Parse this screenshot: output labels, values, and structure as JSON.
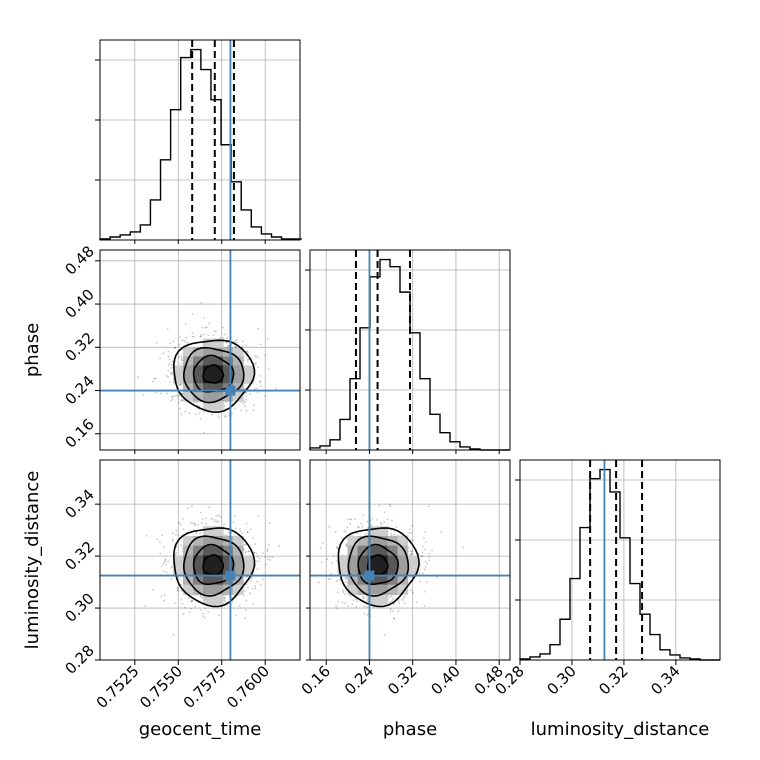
{
  "chart_data": {
    "type": "corner",
    "params": [
      {
        "name": "geocent_time",
        "ticks": [
          "0.7525",
          "0.7550",
          "0.7575",
          "0.7600"
        ],
        "range": [
          0.7505,
          0.762
        ],
        "quantiles": [
          0.7558,
          0.7571,
          0.7582
        ],
        "truth": 0.758,
        "hist_edges_start": 0.7505,
        "hist_bin_width": 0.00058,
        "hist_counts": [
          1,
          3,
          5,
          8,
          15,
          40,
          80,
          130,
          182,
          190,
          170,
          140,
          95,
          58,
          30,
          13,
          6,
          3,
          1,
          1
        ]
      },
      {
        "name": "phase",
        "ticks": [
          "0.16",
          "0.24",
          "0.32",
          "0.40",
          "0.48"
        ],
        "range": [
          0.13,
          0.5
        ],
        "quantiles": [
          0.215,
          0.255,
          0.315
        ],
        "truth": 0.24,
        "hist_edges_start": 0.13,
        "hist_bin_width": 0.0185,
        "hist_counts": [
          2,
          4,
          10,
          30,
          70,
          120,
          170,
          187,
          180,
          155,
          115,
          70,
          35,
          17,
          8,
          3,
          1,
          0,
          0,
          0
        ]
      },
      {
        "name": "luminosity_distance",
        "ticks": [
          "0.28",
          "0.30",
          "0.32",
          "0.34"
        ],
        "range": [
          0.28,
          0.357
        ],
        "quantiles": [
          0.307,
          0.317,
          0.327
        ],
        "truth": 0.3125,
        "hist_edges_start": 0.28,
        "hist_bin_width": 0.00385,
        "hist_counts": [
          1,
          3,
          6,
          15,
          40,
          80,
          130,
          178,
          187,
          165,
          120,
          75,
          45,
          25,
          10,
          5,
          2,
          1,
          0,
          0
        ]
      }
    ],
    "pairs": [
      {
        "x": "geocent_time",
        "y": "phase",
        "center": [
          0.757,
          0.27
        ],
        "sigma": [
          0.00115,
          0.033
        ]
      },
      {
        "x": "geocent_time",
        "y": "luminosity_distance",
        "center": [
          0.757,
          0.3165
        ],
        "sigma": [
          0.00115,
          0.0075
        ]
      },
      {
        "x": "phase",
        "y": "luminosity_distance",
        "center": [
          0.255,
          0.3165
        ],
        "sigma": [
          0.037,
          0.0075
        ]
      }
    ],
    "colors": {
      "truth": "#4682b4",
      "hist": "#000000",
      "grid": "#b0b0b0"
    },
    "grid": true
  }
}
